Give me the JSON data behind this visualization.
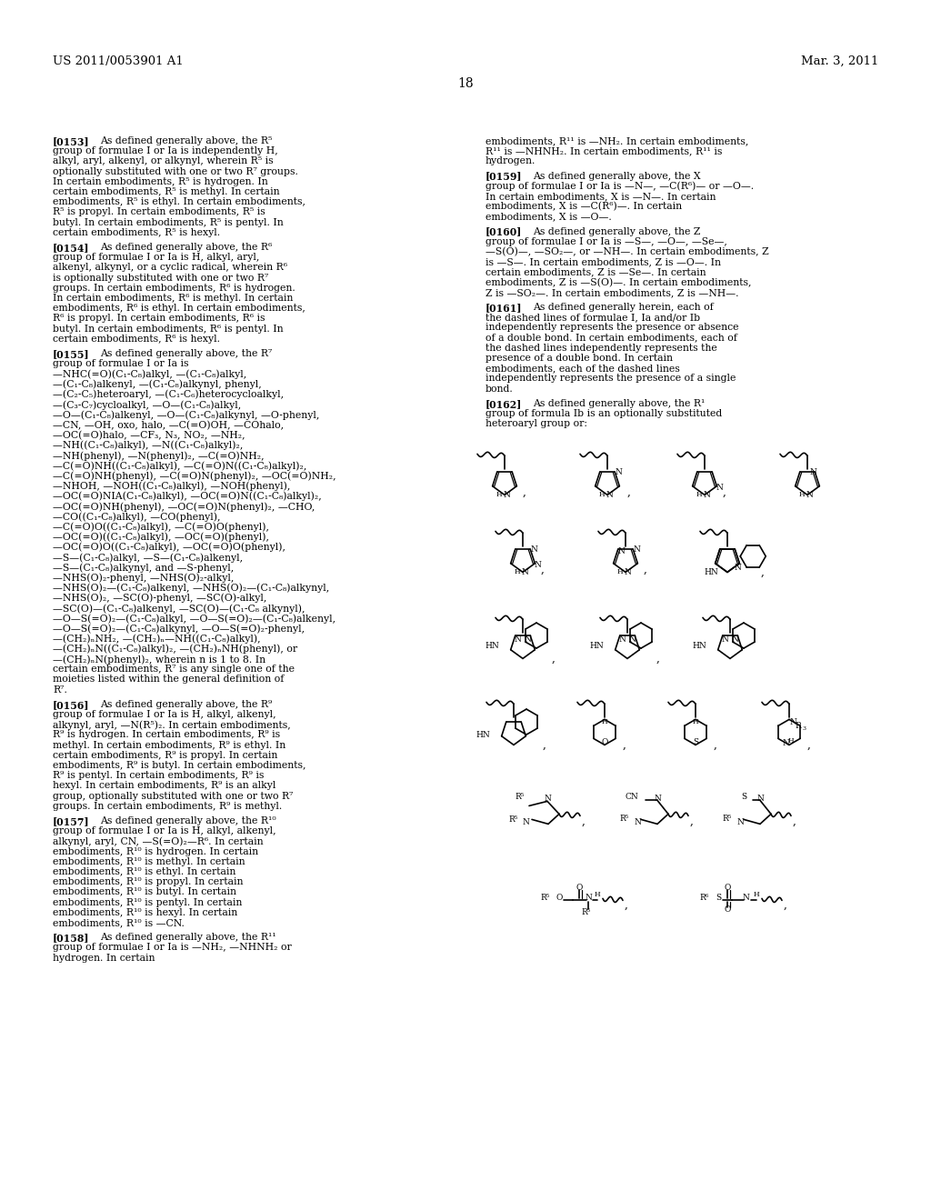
{
  "background_color": "#ffffff",
  "header_left": "US 2011/0053901 A1",
  "header_right": "Mar. 3, 2011",
  "page_number": "18"
}
